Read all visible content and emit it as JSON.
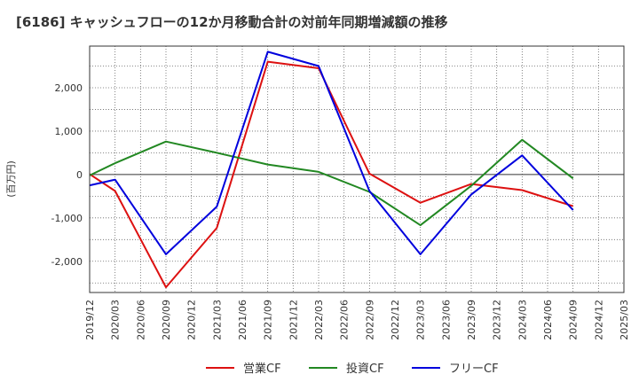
{
  "chart_data": {
    "type": "line",
    "title": "[6186]  キャッシュフローの12か月移動合計の対前年同期増減額の推移",
    "ylabel": "(百万円)",
    "xlabel": "",
    "x_ticks": [
      "2019/12",
      "2020/03",
      "2020/06",
      "2020/09",
      "2020/12",
      "2021/03",
      "2021/06",
      "2021/09",
      "2021/12",
      "2022/03",
      "2022/06",
      "2022/09",
      "2022/12",
      "2023/03",
      "2023/06",
      "2023/09",
      "2023/12",
      "2024/03",
      "2024/06",
      "2024/09",
      "2024/12",
      "2025/03"
    ],
    "y_ticks": [
      2000,
      1000,
      0,
      -1000,
      -2000
    ],
    "y_tick_labels": [
      "2,000",
      "1,000",
      "0",
      "-1,000",
      "-2,000"
    ],
    "ylim": [
      -2720,
      2960
    ],
    "grid": true,
    "legend_position": "bottom",
    "series": [
      {
        "name": "営業CF",
        "color": "#dd1111",
        "values": [
          10,
          -380,
          null,
          -2600,
          null,
          -1230,
          null,
          2600,
          null,
          2450,
          null,
          20,
          null,
          -650,
          null,
          -220,
          null,
          -360,
          null,
          -730,
          null,
          null
        ]
      },
      {
        "name": "投資CF",
        "color": "#228822",
        "values": [
          -20,
          260,
          null,
          760,
          null,
          500,
          null,
          230,
          null,
          60,
          null,
          -400,
          null,
          -1170,
          null,
          -260,
          null,
          800,
          null,
          -90,
          null,
          null
        ]
      },
      {
        "name": "フリーCF",
        "color": "#0000dd",
        "values": [
          -250,
          -120,
          null,
          -1840,
          null,
          -740,
          null,
          2830,
          null,
          2500,
          null,
          -380,
          null,
          -1840,
          null,
          -460,
          null,
          440,
          null,
          -820,
          null,
          null
        ]
      }
    ]
  }
}
